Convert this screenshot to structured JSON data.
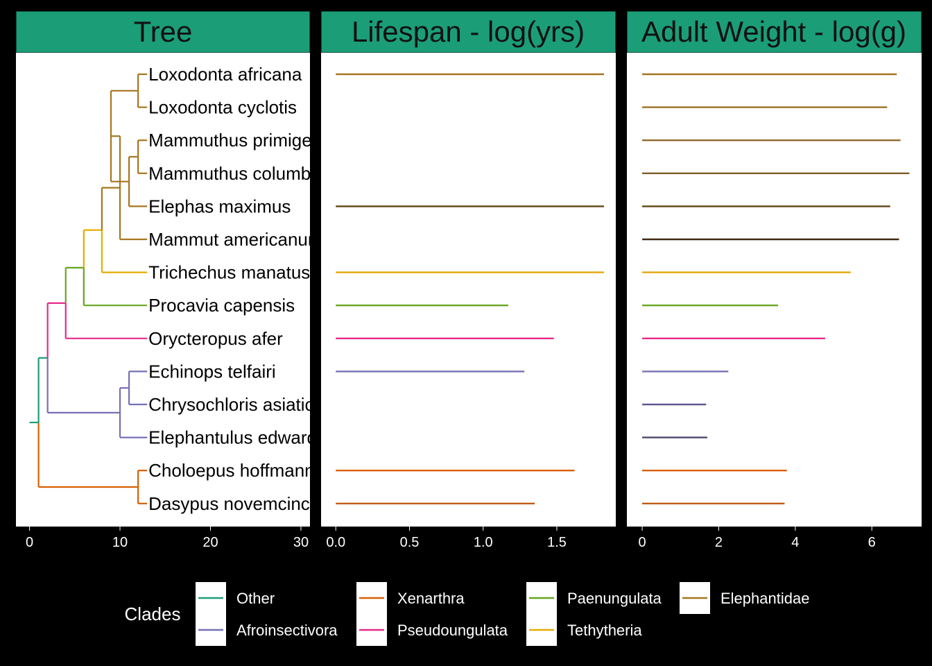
{
  "chart_data": [
    {
      "type": "tree",
      "title": "Tree",
      "xlim": [
        -1.5,
        31
      ],
      "xticks": [
        0,
        10,
        20,
        30
      ],
      "tips": [
        {
          "label": "Loxodonta africana",
          "clade": "Elephantidae"
        },
        {
          "label": "Loxodonta cyclotis",
          "clade": "Elephantidae"
        },
        {
          "label": "Mammuthus primigenius",
          "clade": "Elephantidae"
        },
        {
          "label": "Mammuthus columbi",
          "clade": "Elephantidae"
        },
        {
          "label": "Elephas maximus",
          "clade": "Elephantidae"
        },
        {
          "label": "Mammut americanum",
          "clade": "Elephantidae"
        },
        {
          "label": "Trichechus manatus",
          "clade": "Tethytheria"
        },
        {
          "label": "Procavia capensis",
          "clade": "Paenungulata"
        },
        {
          "label": "Orycteropus afer",
          "clade": "Pseudoungulata"
        },
        {
          "label": "Echinops telfairi",
          "clade": "Afroinsectivora"
        },
        {
          "label": "Chrysochloris asiatica",
          "clade": "Afroinsectivora"
        },
        {
          "label": "Elephantulus edwardii",
          "clade": "Afroinsectivora"
        },
        {
          "label": "Choloepus hoffmanni",
          "clade": "Xenarthra"
        },
        {
          "label": "Dasypus novemcinctus",
          "clade": "Xenarthra"
        }
      ],
      "tip_depth": 13,
      "nodes": [
        {
          "id": "root",
          "x": 1,
          "children": [
            "afrotheria",
            "xenarthra"
          ],
          "clade": "Other"
        },
        {
          "id": "afrotheria",
          "x": 2,
          "children": [
            "pseudoungulata",
            "afroinsectivora"
          ],
          "clade": "Other"
        },
        {
          "id": "pseudoungulata",
          "x": 4,
          "children": [
            "paenungulata",
            8
          ],
          "clade": "Pseudoungulata"
        },
        {
          "id": "paenungulata",
          "x": 6,
          "children": [
            "tethytheria",
            7
          ],
          "clade": "Paenungulata"
        },
        {
          "id": "tethytheria",
          "x": 8,
          "children": [
            "proboscidea",
            6
          ],
          "clade": "Tethytheria"
        },
        {
          "id": "proboscidea",
          "x": 10,
          "children": [
            "elephantidae",
            5
          ],
          "clade": "Elephantidae"
        },
        {
          "id": "elephantidae",
          "x": 9,
          "children": [
            "loxodonta",
            "elephantini"
          ],
          "clade": "Elephantidae"
        },
        {
          "id": "loxodonta",
          "x": 12,
          "children": [
            0,
            1
          ],
          "clade": "Elephantidae"
        },
        {
          "id": "elephantini",
          "x": 11,
          "children": [
            "mammuthus",
            4
          ],
          "clade": "Elephantidae"
        },
        {
          "id": "mammuthus",
          "x": 12,
          "children": [
            2,
            3
          ],
          "clade": "Elephantidae"
        },
        {
          "id": "afroinsectivora",
          "x": 10,
          "children": [
            "afrosoricida",
            11
          ],
          "clade": "Afroinsectivora"
        },
        {
          "id": "afrosoricida",
          "x": 11,
          "children": [
            9,
            10
          ],
          "clade": "Afroinsectivora"
        },
        {
          "id": "xenarthra",
          "x": 12,
          "children": [
            12,
            13
          ],
          "clade": "Xenarthra"
        }
      ]
    },
    {
      "type": "bar",
      "title": "Lifespan - log(yrs)",
      "xlim": [
        -0.1,
        1.9
      ],
      "xticks": [
        0.0,
        0.5,
        1.0,
        1.5
      ],
      "xtick_labels": [
        "0.0",
        "0.5",
        "1.0",
        "1.5"
      ],
      "values": [
        1.82,
        null,
        null,
        null,
        1.82,
        null,
        1.82,
        1.17,
        1.48,
        1.28,
        null,
        null,
        1.62,
        1.35
      ]
    },
    {
      "type": "bar",
      "title": "Adult Weight - log(g)",
      "xlim": [
        -0.4,
        7.3
      ],
      "xticks": [
        0,
        2,
        4,
        6
      ],
      "xtick_labels": [
        "0",
        "2",
        "4",
        "6"
      ],
      "values": [
        6.65,
        6.4,
        6.75,
        6.98,
        6.48,
        6.71,
        5.45,
        3.55,
        4.78,
        2.25,
        1.67,
        1.7,
        3.78,
        3.72
      ]
    }
  ],
  "series_colors": [
    "#a47320",
    "#9b6f23",
    "#8e6a2a",
    "#7d5d25",
    "#5e4515",
    "#3f2a12",
    "#e5a50a",
    "#66a61e",
    "#e7298a",
    "#7570b3",
    "#5f588f",
    "#4d466c",
    "#d95f02",
    "#c15b12"
  ],
  "clade_colors": {
    "Other": "#1b9e77",
    "Xenarthra": "#d95f02",
    "Paenungulata": "#66a61e",
    "Elephantidae": "#a6761d",
    "Afroinsectivora": "#7570b3",
    "Pseudoungulata": "#e7298a",
    "Tethytheria": "#e6ab02"
  },
  "strip_color": "#1b9e77",
  "legend": {
    "title": "Clades",
    "entries": [
      {
        "label": "Other",
        "clade": "Other"
      },
      {
        "label": "Afroinsectivora",
        "clade": "Afroinsectivora"
      },
      {
        "label": "Xenarthra",
        "clade": "Xenarthra"
      },
      {
        "label": "Pseudoungulata",
        "clade": "Pseudoungulata"
      },
      {
        "label": "Paenungulata",
        "clade": "Paenungulata"
      },
      {
        "label": "Tethytheria",
        "clade": "Tethytheria"
      },
      {
        "label": "Elephantidae",
        "clade": "Elephantidae"
      }
    ]
  }
}
